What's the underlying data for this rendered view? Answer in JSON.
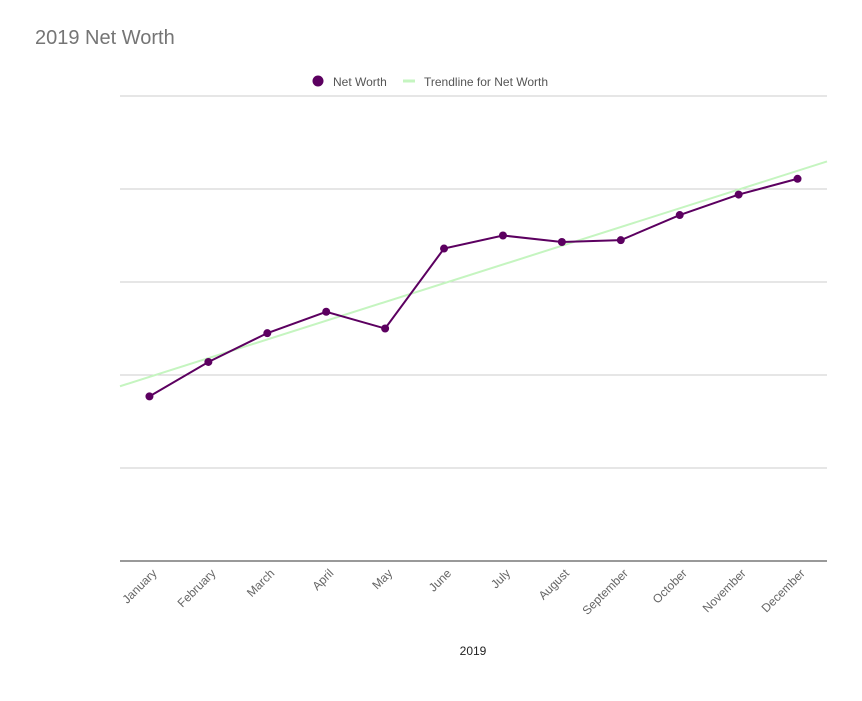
{
  "chart_data": {
    "type": "line",
    "title": "2019 Net Worth",
    "xlabel": "2019",
    "ylabel": "",
    "categories": [
      "January",
      "February",
      "March",
      "April",
      "May",
      "June",
      "July",
      "August",
      "September",
      "October",
      "November",
      "December"
    ],
    "series": [
      {
        "name": "Net Worth",
        "color": "#5c0060",
        "values": [
          1.77,
          2.14,
          2.45,
          2.68,
          2.5,
          3.36,
          3.5,
          3.43,
          3.45,
          3.72,
          3.94,
          4.11
        ]
      }
    ],
    "trendline": {
      "name": "Trendline for Net Worth",
      "color": "#c5f5c0",
      "type": "linear"
    },
    "ylim": [
      0,
      5
    ],
    "gridlines": 6,
    "y_tick_labels_shown": false,
    "grid": true,
    "legend": "top"
  }
}
